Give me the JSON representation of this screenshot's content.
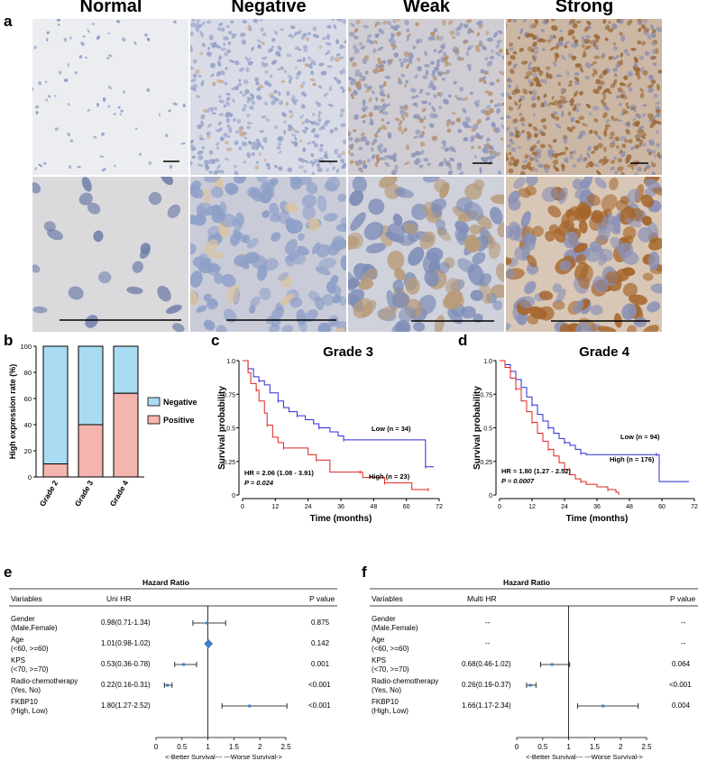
{
  "panel_a": {
    "letter": "a",
    "columns": [
      "Normal",
      "Negative",
      "Weak",
      "Strong"
    ]
  },
  "panel_b": {
    "letter": "b",
    "ylabel": "High expression rate (%)",
    "yticks": [
      "0",
      "20",
      "40",
      "60",
      "80",
      "100"
    ],
    "legend": [
      "Negative",
      "Positive"
    ]
  },
  "panel_c": {
    "letter": "c",
    "title": "Grade 3",
    "ylabel": "Survival probability",
    "xlabel": "Time (months)",
    "xticks": [
      "0",
      "12",
      "24",
      "36",
      "48",
      "60",
      "72"
    ],
    "yticks": [
      "0",
      "0.25",
      "0.5",
      "0.75",
      "1.0"
    ],
    "low_label": "Low (n = 34)",
    "high_label": "High (n = 23)",
    "hr_text": "HR = 2.06 (1.08 - 3.91)",
    "p_text": "P = 0.024"
  },
  "panel_d": {
    "letter": "d",
    "title": "Grade 4",
    "ylabel": "Survival probability",
    "xlabel": "Time (months)",
    "xticks": [
      "0",
      "12",
      "24",
      "36",
      "48",
      "60",
      "72"
    ],
    "yticks": [
      "0",
      "0.25",
      "0.5",
      "0.75",
      "1.0"
    ],
    "low_label": "Low (n = 94)",
    "high_label": "High (n = 176)",
    "hr_text": "HR = 1.80 (1.27 - 2.52)",
    "p_text": "P = 0.0007"
  },
  "panel_e": {
    "letter": "e",
    "title": "Hazard Ratio",
    "col_variables": "Variables",
    "col_hr": "Uni HR",
    "col_p": "P value",
    "xticks": [
      "0",
      "0.5",
      "1",
      "1.5",
      "2",
      "2.5"
    ],
    "axis_caption": "<-Better Survival--- ---Worse Survival->",
    "rows": [
      {
        "var": "Gender",
        "sub": "(Male,Female)",
        "hr": "0.98(0.71-1.34)",
        "p": "0.875"
      },
      {
        "var": "Age",
        "sub": "(<60, >=60)",
        "hr": "1.01(0.98-1.02)",
        "p": "0.142"
      },
      {
        "var": "KPS",
        "sub": "(<70, >=70)",
        "hr": "0.53(0.36-0.78)",
        "p": "0.001"
      },
      {
        "var": "Radio-chemotherapy",
        "sub": "(Yes, No)",
        "hr": "0.22(0.16-0.31)",
        "p": "<0.001"
      },
      {
        "var": "FKBP10",
        "sub": "(High, Low)",
        "hr": "1.80(1.27-2.52)",
        "p": "<0.001"
      }
    ]
  },
  "panel_f": {
    "letter": "f",
    "title": "Hazard Ratio",
    "col_variables": "Variables",
    "col_hr": "Multi HR",
    "col_p": "P value",
    "xticks": [
      "0",
      "0.5",
      "1",
      "1.5",
      "2",
      "2.5"
    ],
    "axis_caption": "<-Better Survival--- ---Worse Survival->",
    "rows": [
      {
        "var": "Gender",
        "sub": "(Male,Female)",
        "hr": "--",
        "p": "--"
      },
      {
        "var": "Age",
        "sub": "(<60, >=60)",
        "hr": "--",
        "p": "--"
      },
      {
        "var": "KPS",
        "sub": "(<70, >=70)",
        "hr": "0.68(0.46-1.02)",
        "p": "0.064"
      },
      {
        "var": "Radio-chemotherapy",
        "sub": "(Yes, No)",
        "hr": "0.26(0.19-0.37)",
        "p": "<0.001"
      },
      {
        "var": "FKBP10",
        "sub": "(High, Low)",
        "hr": "1.66(1.17-2.34)",
        "p": "0.004"
      }
    ]
  },
  "chart_data": [
    {
      "type": "bar",
      "panel": "b",
      "categories": [
        "Grade 2",
        "Grade 3",
        "Grade 4"
      ],
      "series": [
        {
          "name": "Negative",
          "values": [
            90,
            60,
            36
          ]
        },
        {
          "name": "Positive",
          "values": [
            10,
            40,
            64
          ]
        }
      ],
      "ylabel": "High expression rate (%)",
      "ylim": [
        0,
        100
      ],
      "stacked": true,
      "colors": {
        "Negative": "#a9dcf2",
        "Positive": "#f4b5ae"
      },
      "legend": "right"
    },
    {
      "type": "line",
      "panel": "c",
      "title": "Grade 3",
      "xlabel": "Time (months)",
      "ylabel": "Survival probability",
      "xlim": [
        0,
        72
      ],
      "ylim": [
        0,
        1
      ],
      "series": [
        {
          "name": "Low (n = 34)",
          "color": "#2b2bd6",
          "points": [
            [
              0,
              1.0
            ],
            [
              2,
              0.94
            ],
            [
              4,
              0.88
            ],
            [
              6,
              0.85
            ],
            [
              8,
              0.82
            ],
            [
              10,
              0.76
            ],
            [
              13,
              0.7
            ],
            [
              15,
              0.65
            ],
            [
              17,
              0.62
            ],
            [
              20,
              0.59
            ],
            [
              23,
              0.56
            ],
            [
              26,
              0.53
            ],
            [
              28,
              0.5
            ],
            [
              32,
              0.47
            ],
            [
              35,
              0.44
            ],
            [
              37,
              0.41
            ],
            [
              50,
              0.41
            ],
            [
              66,
              0.41
            ],
            [
              67,
              0.21
            ],
            [
              70,
              0.21
            ]
          ]
        },
        {
          "name": "High (n = 23)",
          "color": "#e02020",
          "points": [
            [
              0,
              1.0
            ],
            [
              2,
              0.91
            ],
            [
              3,
              0.83
            ],
            [
              5,
              0.78
            ],
            [
              6,
              0.7
            ],
            [
              8,
              0.61
            ],
            [
              9,
              0.52
            ],
            [
              11,
              0.43
            ],
            [
              13,
              0.39
            ],
            [
              15,
              0.35
            ],
            [
              20,
              0.35
            ],
            [
              24,
              0.3
            ],
            [
              27,
              0.26
            ],
            [
              32,
              0.17
            ],
            [
              36,
              0.17
            ],
            [
              43,
              0.17
            ],
            [
              44,
              0.13
            ],
            [
              50,
              0.13
            ],
            [
              52,
              0.09
            ],
            [
              60,
              0.09
            ],
            [
              62,
              0.04
            ],
            [
              68,
              0.04
            ]
          ]
        }
      ],
      "annotations": [
        "HR = 2.06 (1.08 - 3.91)",
        "P = 0.024"
      ]
    },
    {
      "type": "line",
      "panel": "d",
      "title": "Grade 4",
      "xlabel": "Time (months)",
      "ylabel": "Survival probability",
      "xlim": [
        0,
        72
      ],
      "ylim": [
        0,
        1
      ],
      "series": [
        {
          "name": "Low (n = 94)",
          "color": "#2b2bd6",
          "points": [
            [
              0,
              1.0
            ],
            [
              2,
              0.97
            ],
            [
              4,
              0.92
            ],
            [
              6,
              0.86
            ],
            [
              8,
              0.8
            ],
            [
              10,
              0.73
            ],
            [
              12,
              0.67
            ],
            [
              14,
              0.6
            ],
            [
              16,
              0.55
            ],
            [
              18,
              0.5
            ],
            [
              20,
              0.46
            ],
            [
              22,
              0.42
            ],
            [
              24,
              0.39
            ],
            [
              26,
              0.37
            ],
            [
              28,
              0.34
            ],
            [
              30,
              0.31
            ],
            [
              32,
              0.3
            ],
            [
              40,
              0.3
            ],
            [
              58,
              0.3
            ],
            [
              59,
              0.1
            ],
            [
              70,
              0.1
            ]
          ]
        },
        {
          "name": "High (n = 176)",
          "color": "#e02020",
          "points": [
            [
              0,
              1.0
            ],
            [
              2,
              0.95
            ],
            [
              4,
              0.87
            ],
            [
              6,
              0.79
            ],
            [
              8,
              0.7
            ],
            [
              10,
              0.62
            ],
            [
              12,
              0.54
            ],
            [
              14,
              0.46
            ],
            [
              16,
              0.4
            ],
            [
              18,
              0.34
            ],
            [
              20,
              0.29
            ],
            [
              22,
              0.24
            ],
            [
              24,
              0.19
            ],
            [
              26,
              0.15
            ],
            [
              28,
              0.12
            ],
            [
              30,
              0.1
            ],
            [
              32,
              0.08
            ],
            [
              36,
              0.06
            ],
            [
              40,
              0.04
            ],
            [
              43,
              0.02
            ],
            [
              44,
              0.0
            ]
          ]
        }
      ],
      "annotations": [
        "HR = 1.80 (1.27 - 2.52)",
        "P = 0.0007"
      ]
    },
    {
      "type": "scatter",
      "panel": "e",
      "title": "Hazard Ratio",
      "xlim": [
        0,
        2.5
      ],
      "categories": [
        "Gender",
        "Age",
        "KPS",
        "Radio-chemotherapy",
        "FKBP10"
      ],
      "hr": [
        0.98,
        1.01,
        0.53,
        0.22,
        1.8
      ],
      "lower": [
        0.71,
        0.98,
        0.36,
        0.16,
        1.27
      ],
      "upper": [
        1.34,
        1.02,
        0.78,
        0.31,
        2.52
      ]
    },
    {
      "type": "scatter",
      "panel": "f",
      "title": "Hazard Ratio",
      "xlim": [
        0,
        2.5
      ],
      "categories": [
        "KPS",
        "Radio-chemotherapy",
        "FKBP10"
      ],
      "hr": [
        0.68,
        0.26,
        1.66
      ],
      "lower": [
        0.46,
        0.19,
        1.17
      ],
      "upper": [
        1.02,
        0.37,
        2.34
      ]
    }
  ]
}
